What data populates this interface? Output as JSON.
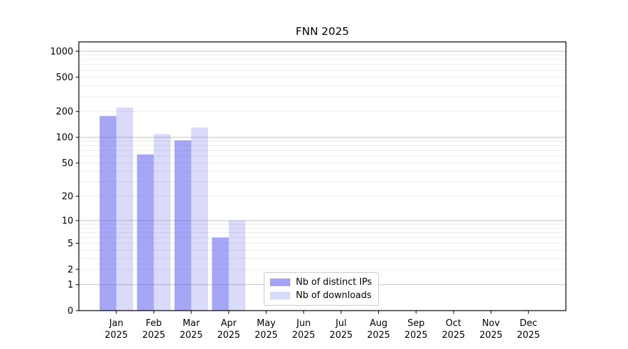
{
  "title": "FNN 2025",
  "chart_data": {
    "type": "bar",
    "title": "FNN 2025",
    "x_tick_line1": [
      "Jan",
      "Feb",
      "Mar",
      "Apr",
      "May",
      "Jun",
      "Jul",
      "Aug",
      "Sep",
      "Oct",
      "Nov",
      "Dec"
    ],
    "x_tick_line2": "2025",
    "categories": [
      "Jan 2025",
      "Feb 2025",
      "Mar 2025",
      "Apr 2025",
      "May 2025",
      "Jun 2025",
      "Jul 2025",
      "Aug 2025",
      "Sep 2025",
      "Oct 2025",
      "Nov 2025",
      "Dec 2025"
    ],
    "series": [
      {
        "name": "Nb of distinct IPs",
        "legend_color": "#a4a4f4",
        "fill": "#5c5cf0",
        "fill_opacity": 0.55,
        "values": [
          177,
          63,
          92,
          6,
          0,
          0,
          0,
          0,
          0,
          0,
          0,
          0
        ]
      },
      {
        "name": "Nb of downloads",
        "legend_color": "#dadafa",
        "fill": "#4646e8",
        "fill_opacity": 0.2,
        "values": [
          222,
          109,
          130,
          10,
          0,
          0,
          0,
          0,
          0,
          0,
          0,
          0
        ]
      }
    ],
    "y_ticks": [
      0,
      1,
      2,
      5,
      10,
      20,
      50,
      100,
      200,
      500,
      1000
    ],
    "y_scale": "log10(1+y)",
    "ylim": [
      0,
      1281
    ],
    "grid": "horizontal",
    "legend_position": "lower-center",
    "colors": {
      "major_grid": "#c2c2c2",
      "minor_grid": "#ebebeb",
      "spine": "#000000",
      "text": "#000000"
    }
  }
}
